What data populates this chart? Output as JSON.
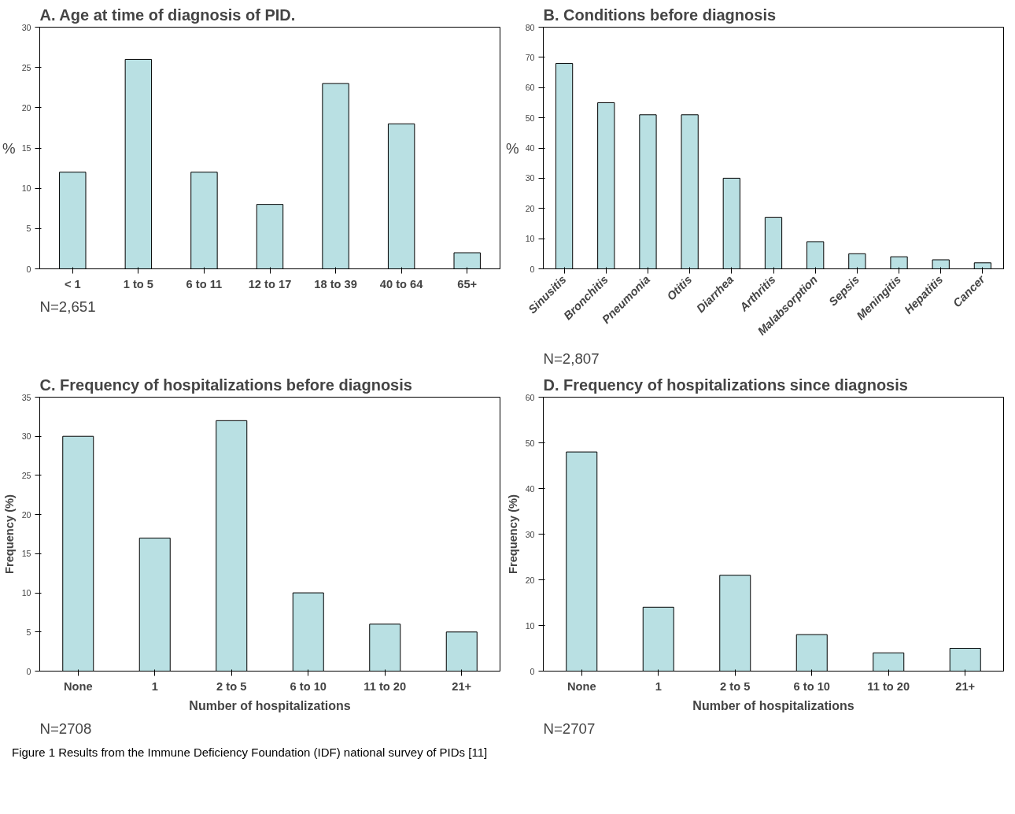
{
  "chart_data": [
    {
      "type": "bar",
      "title": "A. Age at time of diagnosis of PID.",
      "ylabel": "%",
      "categories": [
        "< 1",
        "1 to 5",
        "6 to 11",
        "12 to 17",
        "18 to 39",
        "40 to 64",
        "65+"
      ],
      "values": [
        12,
        26,
        12,
        8,
        23,
        18,
        2
      ],
      "color": "#b9e0e3",
      "ylim": [
        0,
        30
      ],
      "yticks": [
        0,
        5,
        10,
        15,
        20,
        25,
        30
      ],
      "grid": false,
      "annotations": [
        "N=2,651"
      ]
    },
    {
      "type": "bar",
      "title": "B. Conditions before diagnosis",
      "ylabel": "%",
      "categories": [
        "Sinusitis",
        "Bronchitis",
        "Pneumonia",
        "Otitis",
        "Diarrhea",
        "Arthritis",
        "Malabsorption",
        "Sepsis",
        "Meningitis",
        "Hepatitis",
        "Cancer"
      ],
      "values": [
        68,
        55,
        51,
        51,
        30,
        17,
        9,
        5,
        4,
        3,
        2
      ],
      "color": "#b9e0e3",
      "ylim": [
        0,
        80
      ],
      "yticks": [
        0,
        10,
        20,
        30,
        40,
        50,
        60,
        70,
        80
      ],
      "grid": false,
      "annotations": [
        "N=2,807"
      ]
    },
    {
      "type": "bar",
      "title": "C. Frequency of hospitalizations before diagnosis",
      "xlabel": "Number of hospitalizations",
      "ylabel": "Frequency (%)",
      "categories": [
        "None",
        "1",
        "2 to 5",
        "6 to 10",
        "11 to 20",
        "21+"
      ],
      "values": [
        30,
        17,
        32,
        10,
        6,
        5
      ],
      "color": "#b9e0e3",
      "ylim": [
        0,
        35
      ],
      "yticks": [
        0,
        5,
        10,
        15,
        20,
        25,
        30,
        35
      ],
      "grid": false,
      "annotations": [
        "N=2708"
      ]
    },
    {
      "type": "bar",
      "title": "D. Frequency of hospitalizations since diagnosis",
      "xlabel": "Number of hospitalizations",
      "ylabel": "Frequency (%)",
      "categories": [
        "None",
        "1",
        "2 to 5",
        "6 to 10",
        "11 to 20",
        "21+"
      ],
      "values": [
        48,
        14,
        21,
        8,
        4,
        5
      ],
      "color": "#b9e0e3",
      "ylim": [
        0,
        60
      ],
      "yticks": [
        0,
        10,
        20,
        30,
        40,
        50,
        60
      ],
      "grid": false,
      "annotations": [
        "N=2707",
        "Figure 1 Results from the Immune Deficiency Foundation (IDF) national survey of PIDs [11]"
      ]
    }
  ]
}
